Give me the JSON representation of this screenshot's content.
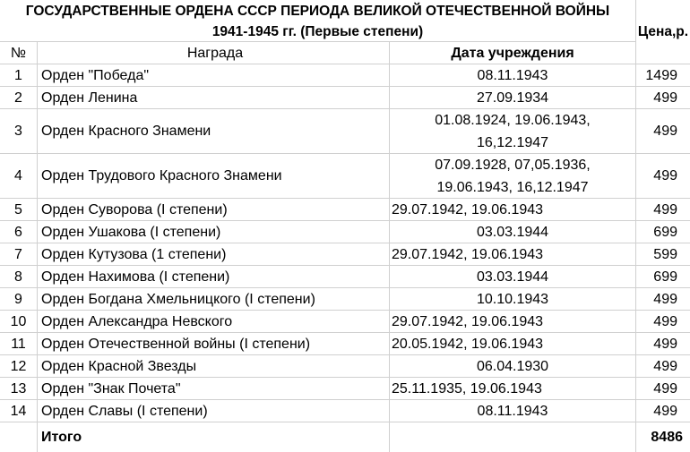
{
  "title": {
    "line1": "ГОСУДАРСТВЕННЫЕ ОРДЕНА СССР ПЕРИОДА ВЕЛИКОЙ ОТЕЧЕСТВЕННОЙ ВОЙНЫ",
    "line2": "1941-1945 гг. (Первые степени)"
  },
  "headers": {
    "num": "№",
    "award": "Награда",
    "date": "Дата учреждения",
    "price": "Цена,р."
  },
  "rows": [
    {
      "num": "1",
      "award": "Орден \"Победа\"",
      "date": [
        "08.11.1943"
      ],
      "price": "1499"
    },
    {
      "num": "2",
      "award": "Орден Ленина",
      "date": [
        "27.09.1934"
      ],
      "price": "499"
    },
    {
      "num": "3",
      "award": "Орден Красного Знамени",
      "date": [
        "01.08.1924, 19.06.1943,",
        "16,12.1947"
      ],
      "price": "499"
    },
    {
      "num": "4",
      "award": "Орден Трудового Красного Знамени",
      "date": [
        "07.09.1928, 07,05.1936,",
        "19.06.1943, 16,12.1947"
      ],
      "price": "499"
    },
    {
      "num": "5",
      "award": "Орден Суворова (I степени)",
      "date": [
        "29.07.1942, 19.06.1943"
      ],
      "price": "499"
    },
    {
      "num": "6",
      "award": "Орден Ушакова (I степени)",
      "date": [
        "03.03.1944"
      ],
      "price": "699"
    },
    {
      "num": "7",
      "award": "Орден Кутузова (1 степени)",
      "date": [
        "29.07.1942, 19.06.1943"
      ],
      "price": "599"
    },
    {
      "num": "8",
      "award": "Орден Нахимова (I степени)",
      "date": [
        "03.03.1944"
      ],
      "price": "699"
    },
    {
      "num": "9",
      "award": "Орден Богдана Хмельницкого (I степени)",
      "date": [
        "10.10.1943"
      ],
      "price": "499"
    },
    {
      "num": "10",
      "award": "Орден Александра Невского",
      "date": [
        "29.07.1942, 19.06.1943"
      ],
      "price": "499"
    },
    {
      "num": "11",
      "award": "Орден Отечественной войны (I степени)",
      "date": [
        "20.05.1942, 19.06.1943"
      ],
      "price": "499"
    },
    {
      "num": "12",
      "award": "Орден Красной Звезды",
      "date": [
        "06.04.1930"
      ],
      "price": "499"
    },
    {
      "num": "13",
      "award": "Орден \"Знак Почета\"",
      "date": [
        "25.11.1935, 19.06.1943"
      ],
      "price": "499"
    },
    {
      "num": "14",
      "award": "Орден Славы (I степени)",
      "date": [
        "08.11.1943"
      ],
      "price": "499"
    }
  ],
  "total": {
    "label": "Итого",
    "value": "8486"
  }
}
